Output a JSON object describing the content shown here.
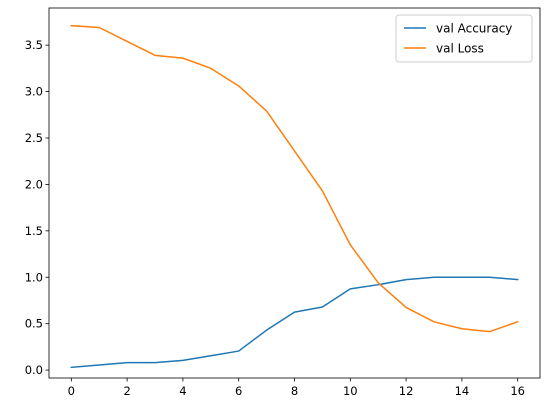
{
  "chart_data": {
    "type": "line",
    "title": "",
    "xlabel": "",
    "ylabel": "",
    "xlim": [
      -0.8,
      16.8
    ],
    "ylim": [
      -0.085,
      3.9
    ],
    "xticks": [
      0,
      2,
      4,
      6,
      8,
      10,
      12,
      14,
      16
    ],
    "yticks": [
      0.0,
      0.5,
      1.0,
      1.5,
      2.0,
      2.5,
      3.0,
      3.5
    ],
    "xtick_labels": [
      "0",
      "2",
      "4",
      "6",
      "8",
      "10",
      "12",
      "14",
      "16"
    ],
    "ytick_labels": [
      "0.0",
      "0.5",
      "1.0",
      "1.5",
      "2.0",
      "2.5",
      "3.0",
      "3.5"
    ],
    "grid": false,
    "legend_position": "top-right",
    "x": [
      0,
      1,
      2,
      3,
      4,
      5,
      6,
      7,
      8,
      9,
      10,
      11,
      12,
      13,
      14,
      15,
      16
    ],
    "series": [
      {
        "name": "val Accuracy",
        "color": "#1f77b4",
        "values": [
          0.03,
          0.055,
          0.08,
          0.08,
          0.105,
          0.155,
          0.205,
          0.43,
          0.625,
          0.68,
          0.875,
          0.92,
          0.975,
          1.0,
          1.0,
          1.0,
          0.975
        ]
      },
      {
        "name": "val Loss",
        "color": "#ff7f0e",
        "values": [
          3.71,
          3.69,
          3.54,
          3.39,
          3.36,
          3.25,
          3.06,
          2.79,
          2.36,
          1.93,
          1.35,
          0.94,
          0.675,
          0.52,
          0.445,
          0.415,
          0.52
        ]
      }
    ]
  }
}
